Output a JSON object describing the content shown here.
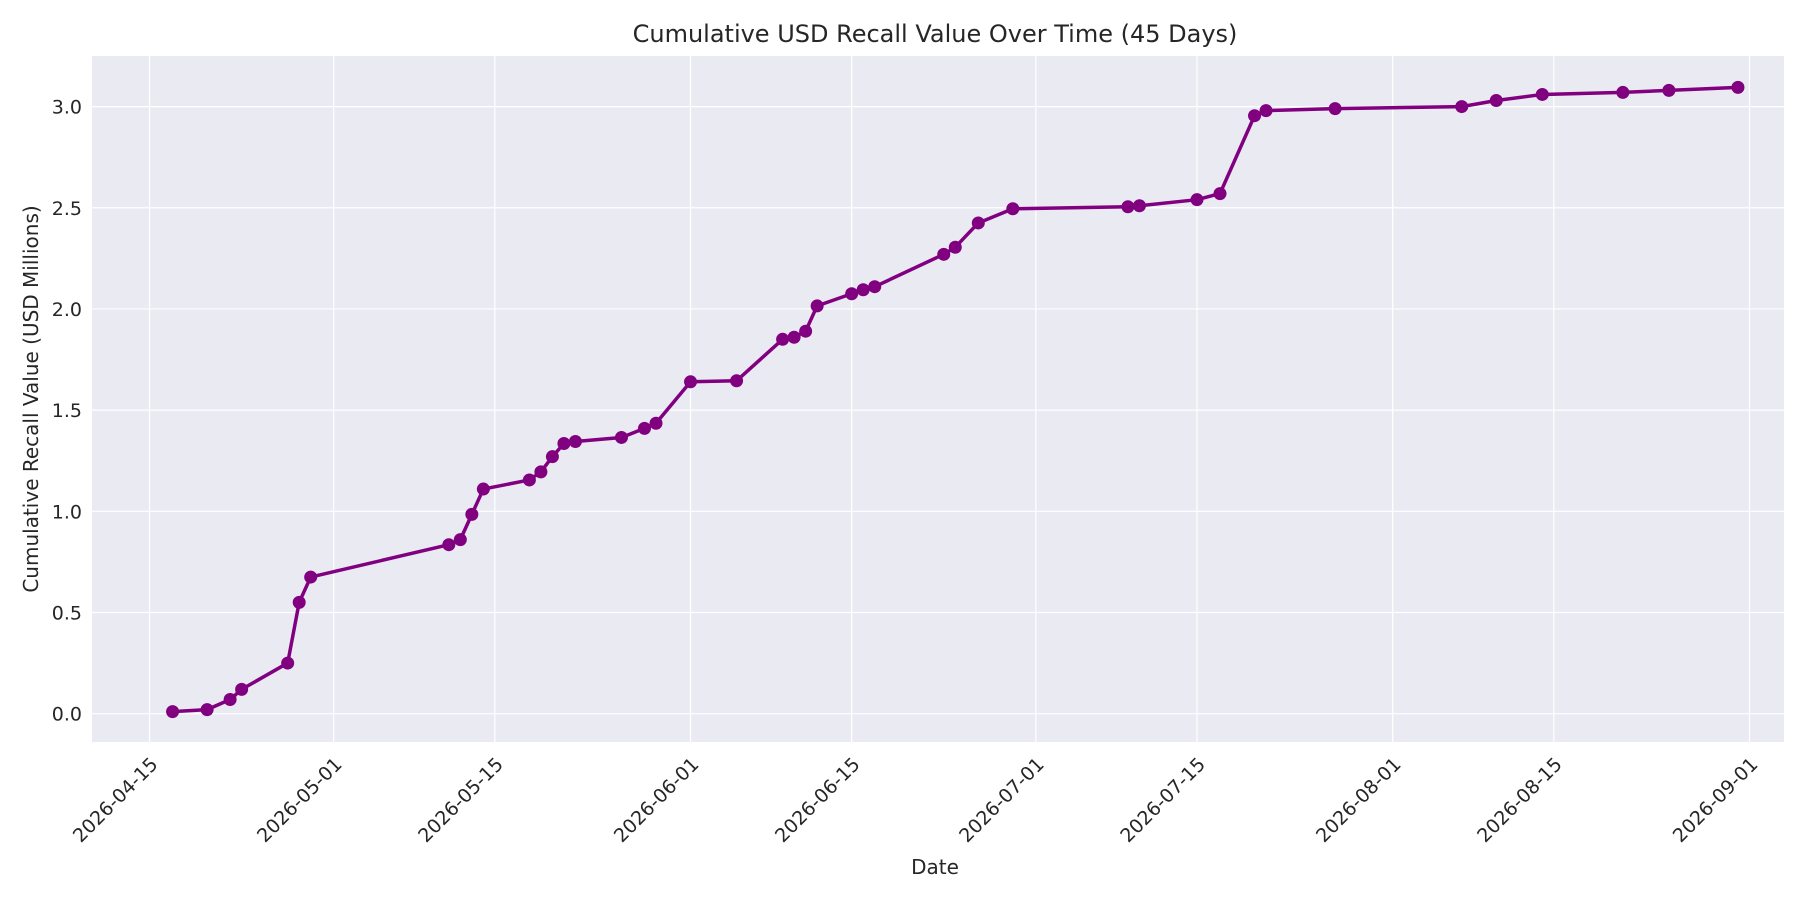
{
  "chart_data": {
    "type": "line",
    "title": "Cumulative USD Recall Value Over Time (45 Days)",
    "xlabel": "Date",
    "ylabel": "Cumulative Recall Value (USD Millions)",
    "xlim": [
      "2026-04-10",
      "2026-09-04"
    ],
    "ylim": [
      -0.14,
      3.25
    ],
    "x_ticks": [
      "2026-04-15",
      "2026-05-01",
      "2026-05-15",
      "2026-06-01",
      "2026-06-15",
      "2026-07-01",
      "2026-07-15",
      "2026-08-01",
      "2026-08-15",
      "2026-09-01"
    ],
    "y_ticks": [
      "0.0",
      "0.5",
      "1.0",
      "1.5",
      "2.0",
      "2.5",
      "3.0"
    ],
    "y_tick_values": [
      0,
      0.5,
      1.0,
      1.5,
      2.0,
      2.5,
      3.0
    ],
    "grid": true,
    "colors": {
      "line": "#800080",
      "background": "#eaeaf2",
      "grid": "#ffffff"
    },
    "series": [
      {
        "x": [
          "2026-04-17",
          "2026-04-20",
          "2026-04-22",
          "2026-04-23",
          "2026-04-27",
          "2026-04-28",
          "2026-04-29",
          "2026-05-11",
          "2026-05-12",
          "2026-05-13",
          "2026-05-14",
          "2026-05-18",
          "2026-05-19",
          "2026-05-20",
          "2026-05-21",
          "2026-05-22",
          "2026-05-26",
          "2026-05-28",
          "2026-05-29",
          "2026-06-01",
          "2026-06-05",
          "2026-06-09",
          "2026-06-10",
          "2026-06-11",
          "2026-06-12",
          "2026-06-15",
          "2026-06-16",
          "2026-06-17",
          "2026-06-23",
          "2026-06-24",
          "2026-06-26",
          "2026-06-29",
          "2026-07-09",
          "2026-07-10",
          "2026-07-15",
          "2026-07-17",
          "2026-07-20",
          "2026-07-21",
          "2026-07-27",
          "2026-08-07",
          "2026-08-10",
          "2026-08-14",
          "2026-08-21",
          "2026-08-25",
          "2026-08-31"
        ],
        "values": [
          0.01,
          0.02,
          0.07,
          0.12,
          0.25,
          0.55,
          0.675,
          0.835,
          0.86,
          0.985,
          1.11,
          1.155,
          1.195,
          1.27,
          1.335,
          1.345,
          1.365,
          1.41,
          1.435,
          1.64,
          1.645,
          1.85,
          1.86,
          1.89,
          2.015,
          2.075,
          2.095,
          2.11,
          2.27,
          2.305,
          2.425,
          2.495,
          2.505,
          2.51,
          2.54,
          2.57,
          2.955,
          2.98,
          2.99,
          3.0,
          3.03,
          3.06,
          3.07,
          3.08,
          3.095
        ]
      }
    ]
  }
}
